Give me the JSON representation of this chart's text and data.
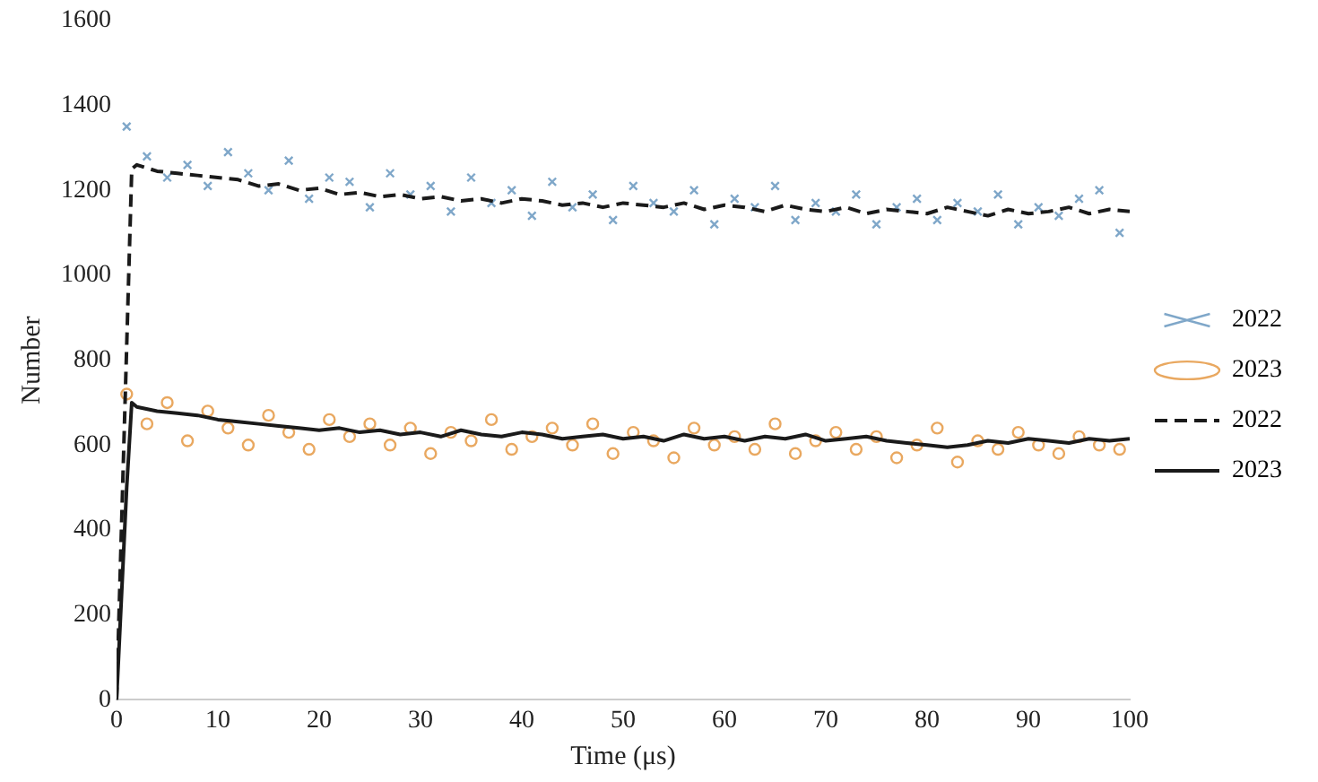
{
  "chart_data": {
    "type": "scatter",
    "xlabel": "Time (μs)",
    "ylabel": "Number",
    "xlim": [
      0,
      100
    ],
    "ylim": [
      0,
      1600
    ],
    "xticks": [
      0,
      10,
      20,
      30,
      40,
      50,
      60,
      70,
      80,
      90,
      100
    ],
    "yticks": [
      0,
      200,
      400,
      600,
      800,
      1000,
      1200,
      1400,
      1600
    ],
    "grid": false,
    "legend": "right",
    "series": [
      {
        "name": "2022",
        "type": "scatter",
        "marker": "cross",
        "color": "#7fa7c9",
        "x": [
          1,
          3,
          5,
          7,
          9,
          11,
          13,
          15,
          17,
          19,
          21,
          23,
          25,
          27,
          29,
          31,
          33,
          35,
          37,
          39,
          41,
          43,
          45,
          47,
          49,
          51,
          53,
          55,
          57,
          59,
          61,
          63,
          65,
          67,
          69,
          71,
          73,
          75,
          77,
          79,
          81,
          83,
          85,
          87,
          89,
          91,
          93,
          95,
          97,
          99
        ],
        "values": [
          1350,
          1280,
          1230,
          1260,
          1210,
          1290,
          1240,
          1200,
          1270,
          1180,
          1230,
          1220,
          1160,
          1240,
          1190,
          1210,
          1150,
          1230,
          1170,
          1200,
          1140,
          1220,
          1160,
          1190,
          1130,
          1210,
          1170,
          1150,
          1200,
          1120,
          1180,
          1160,
          1210,
          1130,
          1170,
          1150,
          1190,
          1120,
          1160,
          1180,
          1130,
          1170,
          1150,
          1190,
          1120,
          1160,
          1140,
          1180,
          1200,
          1100
        ]
      },
      {
        "name": "2023",
        "type": "scatter",
        "marker": "circle",
        "color": "#e9a860",
        "x": [
          1,
          3,
          5,
          7,
          9,
          11,
          13,
          15,
          17,
          19,
          21,
          23,
          25,
          27,
          29,
          31,
          33,
          35,
          37,
          39,
          41,
          43,
          45,
          47,
          49,
          51,
          53,
          55,
          57,
          59,
          61,
          63,
          65,
          67,
          69,
          71,
          73,
          75,
          77,
          79,
          81,
          83,
          85,
          87,
          89,
          91,
          93,
          95,
          97,
          99
        ],
        "values": [
          720,
          650,
          700,
          610,
          680,
          640,
          600,
          670,
          630,
          590,
          660,
          620,
          650,
          600,
          640,
          580,
          630,
          610,
          660,
          590,
          620,
          640,
          600,
          650,
          580,
          630,
          610,
          570,
          640,
          600,
          620,
          590,
          650,
          580,
          610,
          630,
          590,
          620,
          570,
          600,
          640,
          560,
          610,
          590,
          630,
          600,
          580,
          620,
          600,
          590
        ]
      },
      {
        "name": "2022",
        "type": "line",
        "marker": "none",
        "line_style": "dashed",
        "color": "#1a1a1a",
        "x": [
          0,
          1.5,
          2,
          4,
          6,
          8,
          10,
          12,
          14,
          16,
          18,
          20,
          22,
          24,
          26,
          28,
          30,
          32,
          34,
          36,
          38,
          40,
          42,
          44,
          46,
          48,
          50,
          52,
          54,
          56,
          58,
          60,
          62,
          64,
          66,
          68,
          70,
          72,
          74,
          76,
          78,
          80,
          82,
          84,
          86,
          88,
          90,
          92,
          94,
          96,
          98,
          100
        ],
        "values": [
          0,
          1250,
          1260,
          1245,
          1240,
          1235,
          1230,
          1225,
          1210,
          1215,
          1200,
          1205,
          1190,
          1195,
          1185,
          1190,
          1180,
          1185,
          1175,
          1180,
          1170,
          1180,
          1175,
          1165,
          1170,
          1160,
          1170,
          1165,
          1160,
          1170,
          1155,
          1165,
          1160,
          1150,
          1165,
          1155,
          1150,
          1160,
          1145,
          1155,
          1150,
          1145,
          1160,
          1150,
          1140,
          1155,
          1145,
          1150,
          1160,
          1145,
          1155,
          1150
        ]
      },
      {
        "name": "2023",
        "type": "line",
        "marker": "none",
        "line_style": "solid",
        "color": "#1a1a1a",
        "x": [
          0,
          1,
          1.5,
          2,
          4,
          6,
          8,
          10,
          12,
          14,
          16,
          18,
          20,
          22,
          24,
          26,
          28,
          30,
          32,
          34,
          36,
          38,
          40,
          42,
          44,
          46,
          48,
          50,
          52,
          54,
          56,
          58,
          60,
          62,
          64,
          66,
          68,
          70,
          72,
          74,
          76,
          78,
          80,
          82,
          84,
          86,
          88,
          90,
          92,
          94,
          96,
          98,
          100
        ],
        "values": [
          0,
          500,
          700,
          690,
          680,
          675,
          670,
          660,
          655,
          650,
          645,
          640,
          635,
          640,
          630,
          635,
          625,
          630,
          620,
          635,
          625,
          620,
          630,
          625,
          615,
          620,
          625,
          615,
          620,
          610,
          625,
          615,
          620,
          610,
          620,
          615,
          625,
          610,
          615,
          620,
          610,
          605,
          600,
          595,
          600,
          610,
          605,
          615,
          610,
          605,
          615,
          610,
          615
        ]
      }
    ]
  }
}
